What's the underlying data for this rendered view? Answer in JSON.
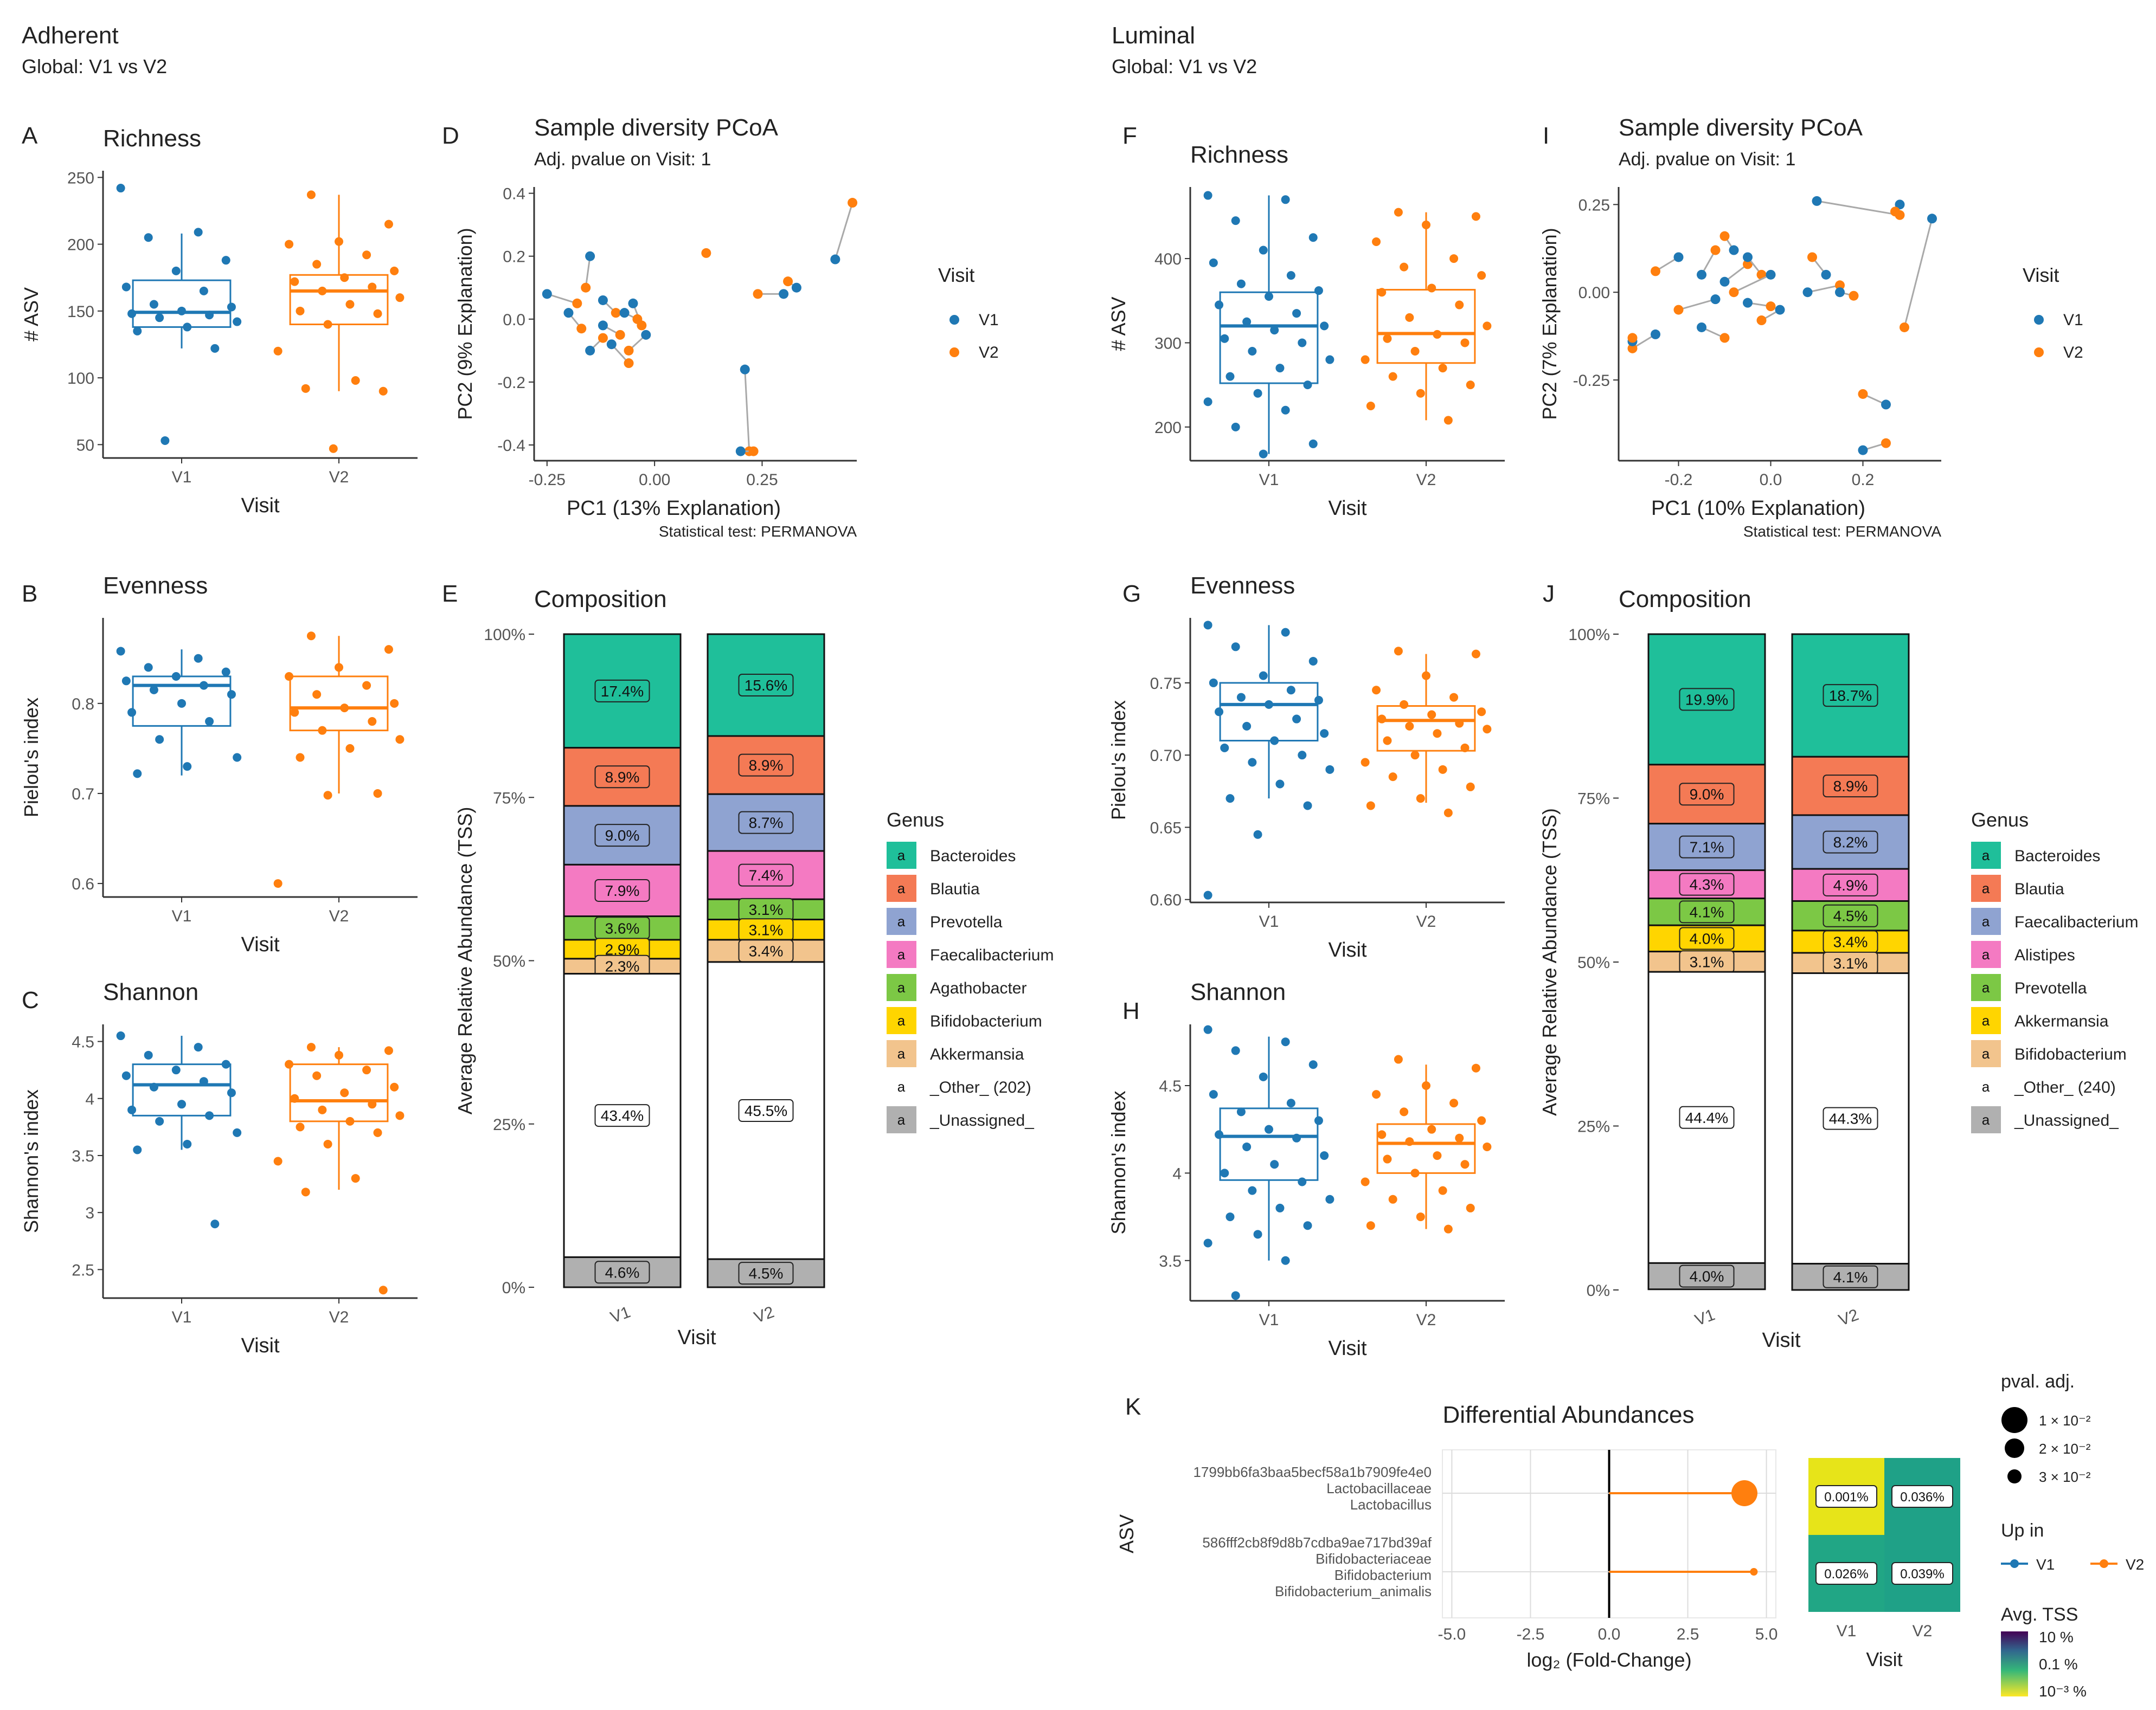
{
  "colors": {
    "v1": "#1f78b4",
    "v2": "#ff7f0e",
    "grid": "#dcdcdc",
    "axis": "#333333"
  },
  "sections": {
    "adherent": {
      "title": "Adherent",
      "subtitle": "Global: V1 vs V2"
    },
    "luminal": {
      "title": "Luminal",
      "subtitle": "Global: V1 vs V2"
    }
  },
  "common": {
    "visit_label": "Visit",
    "legend_title": "Visit",
    "legend_v1": "V1",
    "legend_v2": "V2",
    "pcoa_title": "Sample diversity PCoA",
    "pcoa_subtitle": "Adj. pvalue on Visit: 1",
    "pcoa_caption": "Statistical test: PERMANOVA",
    "composition_title": "Composition",
    "composition_ylabel": "Average Relative Abundance (TSS)",
    "genus_title": "Genus",
    "genus_swatch_letter": "a"
  },
  "chart_data": [
    {
      "id": "A",
      "panel_label": "A",
      "type": "box",
      "title": "Richness",
      "xlabel": "Visit",
      "ylabel": "# ASV",
      "categories": [
        "V1",
        "V2"
      ],
      "ylim": [
        40,
        255
      ],
      "yticks": [
        50,
        100,
        150,
        200,
        250
      ],
      "boxes": [
        {
          "q1": 138,
          "median": 149,
          "q3": 173,
          "lo": 122,
          "hi": 208
        },
        {
          "q1": 140,
          "median": 165,
          "q3": 177,
          "lo": 90,
          "hi": 237
        }
      ],
      "points": [
        [
          242,
          209,
          205,
          188,
          180,
          168,
          165,
          155,
          153,
          150,
          148,
          147,
          145,
          142,
          138,
          135,
          122,
          53
        ],
        [
          237,
          215,
          202,
          200,
          192,
          185,
          180,
          175,
          172,
          168,
          165,
          160,
          155,
          150,
          148,
          140,
          120,
          98,
          92,
          90,
          47
        ]
      ]
    },
    {
      "id": "B",
      "panel_label": "B",
      "type": "box",
      "title": "Evenness",
      "xlabel": "Visit",
      "ylabel": "Pielou's index",
      "categories": [
        "V1",
        "V2"
      ],
      "ylim": [
        0.585,
        0.895
      ],
      "yticks": [
        0.6,
        0.7,
        0.8
      ],
      "boxes": [
        {
          "q1": 0.775,
          "median": 0.82,
          "q3": 0.83,
          "lo": 0.72,
          "hi": 0.86
        },
        {
          "q1": 0.77,
          "median": 0.795,
          "q3": 0.83,
          "lo": 0.7,
          "hi": 0.875
        }
      ],
      "points": [
        [
          0.858,
          0.85,
          0.84,
          0.835,
          0.83,
          0.825,
          0.82,
          0.815,
          0.81,
          0.8,
          0.79,
          0.78,
          0.76,
          0.74,
          0.73,
          0.722
        ],
        [
          0.875,
          0.86,
          0.84,
          0.83,
          0.82,
          0.81,
          0.8,
          0.795,
          0.79,
          0.78,
          0.77,
          0.76,
          0.75,
          0.74,
          0.7,
          0.698,
          0.6
        ]
      ]
    },
    {
      "id": "C",
      "panel_label": "C",
      "type": "box",
      "title": "Shannon",
      "xlabel": "Visit",
      "ylabel": "Shannon's index",
      "categories": [
        "V1",
        "V2"
      ],
      "ylim": [
        2.25,
        4.65
      ],
      "yticks": [
        2.5,
        3.0,
        3.5,
        4.0,
        4.5
      ],
      "boxes": [
        {
          "q1": 3.85,
          "median": 4.12,
          "q3": 4.3,
          "lo": 3.55,
          "hi": 4.55
        },
        {
          "q1": 3.8,
          "median": 3.98,
          "q3": 4.3,
          "lo": 3.2,
          "hi": 4.45
        }
      ],
      "points": [
        [
          4.55,
          4.45,
          4.38,
          4.3,
          4.25,
          4.2,
          4.15,
          4.1,
          4.05,
          3.95,
          3.9,
          3.85,
          3.8,
          3.7,
          3.6,
          3.55,
          2.9
        ],
        [
          4.45,
          4.42,
          4.38,
          4.3,
          4.25,
          4.2,
          4.1,
          4.05,
          4.0,
          3.95,
          3.9,
          3.85,
          3.8,
          3.75,
          3.7,
          3.6,
          3.45,
          3.3,
          3.18,
          2.32
        ]
      ]
    },
    {
      "id": "D",
      "panel_label": "D",
      "type": "scatter",
      "title": "Sample diversity PCoA",
      "subtitle": "Adj. pvalue on Visit: 1",
      "xlabel": "PC1 (13% Explanation)",
      "ylabel": "PC2 (9% Explanation)",
      "caption": "Statistical test: PERMANOVA",
      "xlim": [
        -0.28,
        0.47
      ],
      "ylim": [
        -0.45,
        0.42
      ],
      "xticks": [
        -0.25,
        0.0,
        0.25
      ],
      "xticklabels": [
        "-0.25",
        "0.00",
        "0.25"
      ],
      "yticks": [
        -0.4,
        -0.2,
        0.0,
        0.2,
        0.4
      ],
      "yticklabels": [
        "-0.4",
        "-0.2",
        "0.0",
        "0.2",
        "0.4"
      ],
      "pairs": [
        [
          -0.25,
          0.08,
          -0.18,
          0.05
        ],
        [
          -0.15,
          0.2,
          -0.16,
          0.1
        ],
        [
          -0.12,
          0.06,
          -0.09,
          0.02
        ],
        [
          -0.2,
          0.02,
          -0.17,
          -0.03
        ],
        [
          -0.15,
          -0.1,
          -0.12,
          -0.06
        ],
        [
          -0.1,
          -0.08,
          -0.06,
          -0.14
        ],
        [
          -0.05,
          0.05,
          -0.03,
          -0.02
        ],
        [
          -0.07,
          0.02,
          -0.04,
          0.0
        ],
        [
          -0.12,
          -0.02,
          -0.08,
          -0.05
        ],
        [
          -0.02,
          -0.05,
          -0.06,
          -0.1
        ],
        [
          0.42,
          0.19,
          0.46,
          0.37
        ],
        [
          0.3,
          0.08,
          0.24,
          0.08
        ],
        [
          0.21,
          -0.16,
          0.22,
          -0.42
        ],
        [
          0.2,
          -0.42,
          0.23,
          -0.42
        ],
        [
          0.33,
          0.1,
          0.31,
          0.12
        ]
      ],
      "extra_v2": [
        [
          0.12,
          0.21
        ]
      ]
    },
    {
      "id": "E",
      "panel_label": "E",
      "type": "stacked_bar",
      "title": "Composition",
      "xlabel": "Visit",
      "ylabel": "Average Relative Abundance (TSS)",
      "categories": [
        "V1",
        "V2"
      ],
      "genera": [
        "Bacteroides",
        "Blautia",
        "Prevotella",
        "Faecalibacterium",
        "Agathobacter",
        "Bifidobacterium",
        "Akkermansia",
        "_Other_ (202)",
        "_Unassigned_"
      ],
      "colors": [
        "#1fbf9a",
        "#f47a55",
        "#8fa3d1",
        "#f47ac2",
        "#7cc845",
        "#ffd500",
        "#f2c48d",
        "#ffffff",
        "#b0b0b0"
      ],
      "series": [
        [
          17.4,
          8.9,
          9.0,
          7.9,
          3.6,
          2.9,
          2.3,
          43.4,
          4.6
        ],
        [
          15.6,
          8.9,
          8.7,
          7.4,
          3.1,
          3.1,
          3.4,
          45.5,
          4.5
        ]
      ],
      "labels": [
        [
          "17.4%",
          "8.9%",
          "9.0%",
          "7.9%",
          "3.6%",
          "2.9%",
          "2.3%",
          "43.4%",
          "4.6%"
        ],
        [
          "15.6%",
          "8.9%",
          "8.7%",
          "7.4%",
          "3.1%",
          "3.1%",
          "3.4%",
          "45.5%",
          "4.5%"
        ]
      ],
      "yticklabels": [
        "0%",
        "25%",
        "50%",
        "75%",
        "100%"
      ]
    },
    {
      "id": "F",
      "panel_label": "F",
      "type": "box",
      "title": "Richness",
      "xlabel": "Visit",
      "ylabel": "# ASV",
      "categories": [
        "V1",
        "V2"
      ],
      "ylim": [
        160,
        485
      ],
      "yticks": [
        200,
        300,
        400
      ],
      "boxes": [
        {
          "q1": 252,
          "median": 320,
          "q3": 360,
          "lo": 168,
          "hi": 475
        },
        {
          "q1": 276,
          "median": 311,
          "q3": 363,
          "lo": 208,
          "hi": 455
        }
      ],
      "points": [
        [
          475,
          470,
          445,
          425,
          410,
          395,
          380,
          370,
          362,
          355,
          345,
          335,
          325,
          320,
          315,
          305,
          300,
          290,
          280,
          270,
          260,
          250,
          240,
          230,
          220,
          200,
          180,
          168
        ],
        [
          455,
          450,
          440,
          420,
          400,
          390,
          380,
          365,
          360,
          345,
          330,
          320,
          310,
          305,
          300,
          290,
          280,
          270,
          260,
          250,
          240,
          225,
          208
        ]
      ]
    },
    {
      "id": "G",
      "panel_label": "G",
      "type": "box",
      "title": "Evenness",
      "xlabel": "Visit",
      "ylabel": "Pielou's index",
      "categories": [
        "V1",
        "V2"
      ],
      "ylim": [
        0.598,
        0.795
      ],
      "yticks": [
        0.6,
        0.65,
        0.7,
        0.75
      ],
      "yticklabels": [
        "0.60",
        "0.65",
        "0.70",
        "0.75"
      ],
      "boxes": [
        {
          "q1": 0.71,
          "median": 0.735,
          "q3": 0.75,
          "lo": 0.67,
          "hi": 0.79
        },
        {
          "q1": 0.703,
          "median": 0.724,
          "q3": 0.734,
          "lo": 0.667,
          "hi": 0.77
        }
      ],
      "points": [
        [
          0.79,
          0.785,
          0.775,
          0.765,
          0.755,
          0.75,
          0.745,
          0.74,
          0.738,
          0.735,
          0.73,
          0.725,
          0.72,
          0.715,
          0.71,
          0.705,
          0.7,
          0.695,
          0.69,
          0.68,
          0.67,
          0.665,
          0.645,
          0.603
        ],
        [
          0.772,
          0.77,
          0.755,
          0.745,
          0.74,
          0.735,
          0.73,
          0.728,
          0.725,
          0.722,
          0.72,
          0.718,
          0.715,
          0.71,
          0.705,
          0.7,
          0.695,
          0.69,
          0.685,
          0.678,
          0.67,
          0.665,
          0.66
        ]
      ]
    },
    {
      "id": "H",
      "panel_label": "H",
      "type": "box",
      "title": "Shannon",
      "xlabel": "Visit",
      "ylabel": "Shannon's index",
      "categories": [
        "V1",
        "V2"
      ],
      "ylim": [
        3.27,
        4.85
      ],
      "yticks": [
        3.5,
        4.0,
        4.5
      ],
      "boxes": [
        {
          "q1": 3.96,
          "median": 4.21,
          "q3": 4.37,
          "lo": 3.5,
          "hi": 4.78
        },
        {
          "q1": 4.0,
          "median": 4.17,
          "q3": 4.28,
          "lo": 3.68,
          "hi": 4.62
        }
      ],
      "points": [
        [
          4.82,
          4.75,
          4.7,
          4.62,
          4.55,
          4.45,
          4.4,
          4.35,
          4.3,
          4.25,
          4.22,
          4.2,
          4.15,
          4.1,
          4.05,
          4.0,
          3.95,
          3.9,
          3.85,
          3.8,
          3.75,
          3.7,
          3.65,
          3.6,
          3.5,
          3.3
        ],
        [
          4.65,
          4.6,
          4.5,
          4.45,
          4.4,
          4.35,
          4.3,
          4.25,
          4.22,
          4.2,
          4.18,
          4.15,
          4.1,
          4.08,
          4.05,
          4.0,
          3.95,
          3.9,
          3.85,
          3.8,
          3.75,
          3.7,
          3.68
        ]
      ]
    },
    {
      "id": "I",
      "panel_label": "I",
      "type": "scatter",
      "title": "Sample diversity PCoA",
      "subtitle": "Adj. pvalue on Visit: 1",
      "xlabel": "PC1 (10% Explanation)",
      "ylabel": "PC2 (7% Explanation)",
      "caption": "Statistical test: PERMANOVA",
      "xlim": [
        -0.33,
        0.37
      ],
      "ylim": [
        -0.48,
        0.3
      ],
      "xticks": [
        -0.2,
        0.0,
        0.2
      ],
      "xticklabels": [
        "-0.2",
        "0.0",
        "0.2"
      ],
      "yticks": [
        -0.25,
        0.0,
        0.25
      ],
      "yticklabels": [
        "-0.25",
        "0.00",
        "0.25"
      ],
      "pairs": [
        [
          0.1,
          0.26,
          0.28,
          0.22
        ],
        [
          0.35,
          0.21,
          0.29,
          -0.1
        ],
        [
          0.28,
          0.25,
          0.27,
          0.23
        ],
        [
          0.25,
          -0.32,
          0.2,
          -0.29
        ],
        [
          0.2,
          -0.45,
          0.25,
          -0.43
        ],
        [
          -0.25,
          -0.12,
          -0.3,
          -0.16
        ],
        [
          -0.3,
          -0.14,
          -0.3,
          -0.13
        ],
        [
          -0.2,
          0.1,
          -0.25,
          0.06
        ],
        [
          -0.15,
          0.05,
          -0.12,
          0.12
        ],
        [
          -0.1,
          0.03,
          -0.05,
          0.08
        ],
        [
          -0.05,
          0.1,
          -0.02,
          0.05
        ],
        [
          0.0,
          0.05,
          -0.08,
          0.0
        ],
        [
          -0.12,
          -0.02,
          -0.2,
          -0.05
        ],
        [
          -0.15,
          -0.1,
          -0.1,
          -0.13
        ],
        [
          -0.05,
          -0.03,
          0.0,
          -0.04
        ],
        [
          0.08,
          0.0,
          0.15,
          0.02
        ],
        [
          0.12,
          0.05,
          0.09,
          0.1
        ],
        [
          0.15,
          0.0,
          0.18,
          -0.01
        ],
        [
          0.02,
          -0.05,
          -0.02,
          -0.08
        ],
        [
          -0.08,
          0.12,
          -0.1,
          0.16
        ]
      ],
      "extra_v2": []
    },
    {
      "id": "J",
      "panel_label": "J",
      "type": "stacked_bar",
      "title": "Composition",
      "xlabel": "Visit",
      "ylabel": "Average Relative Abundance (TSS)",
      "categories": [
        "V1",
        "V2"
      ],
      "genera": [
        "Bacteroides",
        "Blautia",
        "Faecalibacterium",
        "Alistipes",
        "Prevotella",
        "Akkermansia",
        "Bifidobacterium",
        "_Other_ (240)",
        "_Unassigned_"
      ],
      "colors": [
        "#1fbf9a",
        "#f47a55",
        "#8fa3d1",
        "#f47ac2",
        "#7cc845",
        "#ffd500",
        "#f2c48d",
        "#ffffff",
        "#b0b0b0"
      ],
      "series": [
        [
          19.9,
          9.0,
          7.1,
          4.3,
          4.1,
          4.0,
          3.1,
          44.4,
          4.0
        ],
        [
          18.7,
          8.9,
          8.2,
          4.9,
          4.5,
          3.4,
          3.1,
          44.3,
          4.1
        ]
      ],
      "labels": [
        [
          "19.9%",
          "9.0%",
          "7.1%",
          "4.3%",
          "4.1%",
          "4.0%",
          "3.1%",
          "44.4%",
          "4.0%"
        ],
        [
          "18.7%",
          "8.9%",
          "8.2%",
          "4.9%",
          "4.5%",
          "3.4%",
          "3.1%",
          "44.3%",
          "4.1%"
        ]
      ],
      "yticklabels": [
        "0%",
        "25%",
        "50%",
        "75%",
        "100%"
      ]
    },
    {
      "id": "K",
      "panel_label": "K",
      "type": "lollipop",
      "title": "Differential Abundances",
      "xlabel": "log₂ (Fold-Change)",
      "ylabel": "ASV",
      "xlim": [
        -5.3,
        5.3
      ],
      "xticks": [
        -5,
        -2.5,
        0,
        2.5,
        5
      ],
      "xticklabels": [
        "-5.0",
        "-2.5",
        "0.0",
        "2.5",
        "5.0"
      ],
      "rows": [
        {
          "label": [
            "1799bb6fa3baa5becf58a1b7909fe4e0",
            "Lactobacillaceae",
            "Lactobacillus"
          ],
          "value": 4.3,
          "pval": 0.01
        },
        {
          "label": [
            "586fff2cb8f9d8b7cdba9ae717bd39af",
            "Bifidobacteriaceae",
            "Bifidobacterium",
            "Bifidobacterium_animalis"
          ],
          "value": 4.6,
          "pval": 0.03
        }
      ],
      "heatmap": {
        "xlabel": "Visit",
        "columns": [
          "V1",
          "V2"
        ],
        "cells": [
          [
            "0.001%",
            "0.036%"
          ],
          [
            "0.026%",
            "0.039%"
          ]
        ],
        "cell_colors": [
          [
            "#e7e419",
            "#1fa187"
          ],
          [
            "#21a685",
            "#1fa187"
          ]
        ]
      },
      "legend_pval": {
        "title": "pval. adj.",
        "labels": [
          "1 × 10⁻²",
          "2 × 10⁻²",
          "3 × 10⁻²"
        ]
      },
      "legend_upin": {
        "title": "Up in",
        "labels": [
          "V1",
          "V2"
        ]
      },
      "legend_tss": {
        "title": "Avg. TSS",
        "labels": [
          "10 %",
          "0.1 %",
          "10⁻³ %"
        ]
      }
    }
  ]
}
